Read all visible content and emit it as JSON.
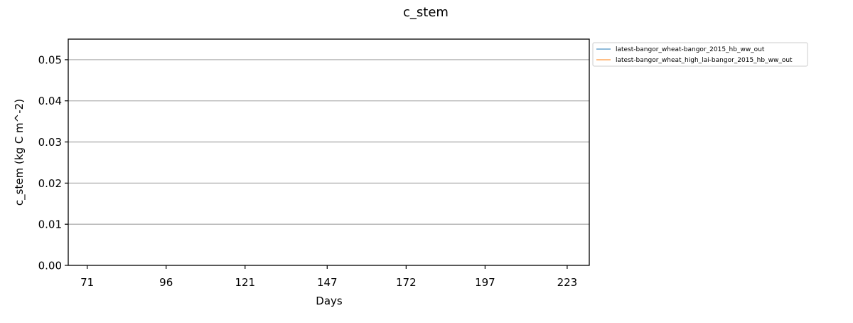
{
  "chart_data": {
    "type": "line",
    "title": "c_stem",
    "xlabel": "Days",
    "ylabel": "c_stem (kg C m^-2)",
    "xlim": [
      65,
      230
    ],
    "ylim": [
      0.0,
      0.055
    ],
    "x_ticks": [
      71,
      96,
      121,
      147,
      172,
      197,
      223
    ],
    "x_tick_labels": [
      "71",
      "96",
      "121",
      "147",
      "172",
      "197",
      "223"
    ],
    "y_ticks": [
      0.0,
      0.01,
      0.02,
      0.03,
      0.04,
      0.05
    ],
    "y_tick_labels": [
      "0.00",
      "0.01",
      "0.02",
      "0.03",
      "0.04",
      "0.05"
    ],
    "grid": "horizontal",
    "legend_position": "outside-top-right",
    "series": [
      {
        "name": "latest-bangor_wheat-bangor_2015_hb_ww_out",
        "color": "#1f77b4",
        "x": [],
        "y": []
      },
      {
        "name": "latest-bangor_wheat_high_lai-bangor_2015_hb_ww_out",
        "color": "#ff7f0e",
        "x": [],
        "y": []
      }
    ]
  }
}
